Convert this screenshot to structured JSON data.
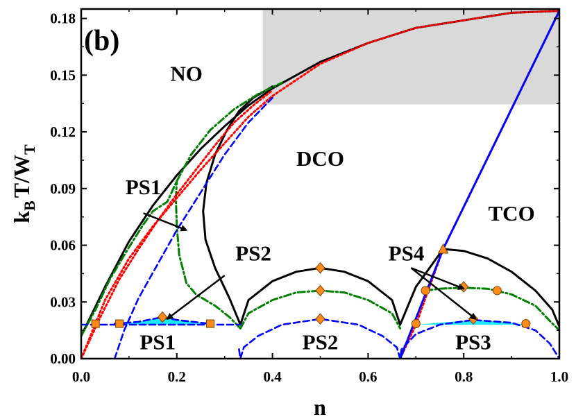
{
  "chart_data": {
    "type": "line",
    "panel_label": "(b)",
    "xlabel": "n",
    "ylabel_main": "k",
    "ylabel_sub1": "B",
    "ylabel_mid": "T/W",
    "ylabel_sub2": "T",
    "xlim": [
      0.0,
      1.0
    ],
    "ylim": [
      0.0,
      0.185
    ],
    "xticks": [
      "0.0",
      "0.2",
      "0.4",
      "0.6",
      "0.8",
      "1.0"
    ],
    "yticks": [
      "0.00",
      "0.03",
      "0.06",
      "0.09",
      "0.12",
      "0.15",
      "0.18"
    ],
    "shaded_region": {
      "x": [
        0.38,
        1.0
      ],
      "y": [
        0.1345,
        0.185
      ],
      "color": "#d9d9d9"
    },
    "colors": {
      "black": "#000000",
      "red": "#ff0000",
      "green": "#008000",
      "blue": "#0000ff",
      "marker": "#ff8c1a",
      "fill": "#00e5ff"
    },
    "series": [
      {
        "style": "solid",
        "color": "#000000",
        "points": [
          [
            0,
            0.012
          ],
          [
            0.05,
            0.038
          ],
          [
            0.1,
            0.062
          ],
          [
            0.15,
            0.081
          ],
          [
            0.2,
            0.097
          ],
          [
            0.25,
            0.111
          ],
          [
            0.3,
            0.123
          ],
          [
            0.35,
            0.134
          ],
          [
            0.4,
            0.143
          ],
          [
            0.5,
            0.157
          ],
          [
            0.6,
            0.167
          ],
          [
            0.7,
            0.175
          ],
          [
            0.8,
            0.179
          ],
          [
            0.9,
            0.183
          ],
          [
            1.0,
            0.184
          ]
        ]
      },
      {
        "style": "solid",
        "color": "#000000",
        "points": [
          [
            0.333,
            0.018
          ],
          [
            0.31,
            0.032
          ],
          [
            0.28,
            0.048
          ],
          [
            0.26,
            0.063
          ],
          [
            0.255,
            0.078
          ],
          [
            0.262,
            0.093
          ],
          [
            0.28,
            0.108
          ],
          [
            0.305,
            0.121
          ],
          [
            0.33,
            0.131
          ],
          [
            0.36,
            0.138
          ],
          [
            0.4,
            0.144
          ]
        ]
      },
      {
        "style": "solid",
        "color": "#000000",
        "points": [
          [
            0.333,
            0.018
          ],
          [
            0.35,
            0.031
          ],
          [
            0.4,
            0.041
          ],
          [
            0.45,
            0.046
          ],
          [
            0.5,
            0.048
          ],
          [
            0.55,
            0.046
          ],
          [
            0.6,
            0.041
          ],
          [
            0.65,
            0.031
          ],
          [
            0.667,
            0.018
          ]
        ]
      },
      {
        "style": "solid",
        "color": "#000000",
        "points": [
          [
            0.667,
            0.018
          ],
          [
            0.7,
            0.038
          ],
          [
            0.757,
            0.058
          ],
          [
            0.8,
            0.057
          ],
          [
            0.85,
            0.053
          ],
          [
            0.9,
            0.046
          ],
          [
            0.95,
            0.036
          ],
          [
            0.985,
            0.026
          ],
          [
            1.0,
            0.017
          ]
        ]
      },
      {
        "style": "dashdot",
        "color": "#008000",
        "points": [
          [
            0,
            0.012
          ],
          [
            0.03,
            0.026
          ],
          [
            0.06,
            0.042
          ],
          [
            0.1,
            0.059
          ],
          [
            0.13,
            0.071
          ],
          [
            0.15,
            0.078
          ],
          [
            0.18,
            0.083
          ],
          [
            0.2,
            0.094
          ],
          [
            0.23,
            0.108
          ],
          [
            0.27,
            0.121
          ],
          [
            0.32,
            0.132
          ],
          [
            0.37,
            0.14
          ],
          [
            0.42,
            0.146
          ]
        ]
      },
      {
        "style": "dashdot",
        "color": "#008000",
        "points": [
          [
            0.333,
            0.016
          ],
          [
            0.31,
            0.022
          ],
          [
            0.28,
            0.028
          ],
          [
            0.24,
            0.034
          ],
          [
            0.22,
            0.04
          ],
          [
            0.205,
            0.055
          ],
          [
            0.2,
            0.07
          ],
          [
            0.198,
            0.085
          ],
          [
            0.2,
            0.094
          ]
        ]
      },
      {
        "style": "dashdot",
        "color": "#008000",
        "points": [
          [
            0.333,
            0.016
          ],
          [
            0.35,
            0.024
          ],
          [
            0.4,
            0.031
          ],
          [
            0.45,
            0.035
          ],
          [
            0.5,
            0.036
          ],
          [
            0.55,
            0.035
          ],
          [
            0.6,
            0.031
          ],
          [
            0.65,
            0.024
          ],
          [
            0.667,
            0.016
          ]
        ]
      },
      {
        "style": "dashdot",
        "color": "#008000",
        "points": [
          [
            0.72,
            0.036
          ],
          [
            0.75,
            0.037
          ],
          [
            0.8,
            0.0375
          ],
          [
            0.85,
            0.037
          ],
          [
            0.9,
            0.034
          ],
          [
            0.95,
            0.028
          ],
          [
            0.98,
            0.02
          ],
          [
            1.0,
            0.015
          ]
        ]
      },
      {
        "style": "dotted",
        "color": "#ff0000",
        "points": [
          [
            0,
            0.0
          ],
          [
            0.04,
            0.022
          ],
          [
            0.08,
            0.042
          ],
          [
            0.12,
            0.058
          ],
          [
            0.16,
            0.073
          ],
          [
            0.2,
            0.087
          ],
          [
            0.24,
            0.1
          ],
          [
            0.28,
            0.113
          ],
          [
            0.32,
            0.125
          ],
          [
            0.36,
            0.134
          ],
          [
            0.4,
            0.142
          ]
        ]
      },
      {
        "style": "dotted",
        "color": "#ff0000",
        "points": [
          [
            0,
            0.0
          ],
          [
            0.05,
            0.031
          ],
          [
            0.1,
            0.053
          ],
          [
            0.15,
            0.07
          ],
          [
            0.2,
            0.085
          ],
          [
            0.25,
            0.1
          ],
          [
            0.3,
            0.114
          ],
          [
            0.35,
            0.128
          ],
          [
            0.4,
            0.139
          ],
          [
            0.5,
            0.156
          ],
          [
            0.6,
            0.167
          ],
          [
            0.7,
            0.175
          ],
          [
            0.8,
            0.179
          ],
          [
            0.9,
            0.183
          ],
          [
            1.0,
            0.184
          ]
        ]
      },
      {
        "style": "dotted",
        "color": "#ff0000",
        "points": [
          [
            0.667,
            0.0
          ],
          [
            0.7,
            0.018
          ],
          [
            0.757,
            0.058
          ],
          [
            1.0,
            0.184
          ]
        ]
      },
      {
        "style": "dashed",
        "color": "#0000ff",
        "points": [
          [
            0.07,
            0.0
          ],
          [
            0.09,
            0.015
          ],
          [
            0.12,
            0.032
          ],
          [
            0.16,
            0.05
          ],
          [
            0.2,
            0.068
          ],
          [
            0.25,
            0.088
          ],
          [
            0.3,
            0.108
          ],
          [
            0.35,
            0.125
          ],
          [
            0.4,
            0.138
          ]
        ]
      },
      {
        "style": "dashed",
        "color": "#0000ff",
        "points": [
          [
            0.0,
            0.018
          ],
          [
            0.333,
            0.018
          ]
        ]
      },
      {
        "style": "dashed",
        "color": "#0000ff",
        "points": [
          [
            0.33,
            0.005
          ],
          [
            0.333,
            0.0
          ],
          [
            0.34,
            0.006
          ],
          [
            0.37,
            0.012
          ],
          [
            0.42,
            0.018
          ],
          [
            0.5,
            0.021
          ],
          [
            0.58,
            0.018
          ],
          [
            0.63,
            0.012
          ],
          [
            0.66,
            0.006
          ],
          [
            0.667,
            0.0
          ],
          [
            0.67,
            0.005
          ],
          [
            0.7,
            0.013
          ],
          [
            0.75,
            0.018
          ],
          [
            0.82,
            0.0205
          ],
          [
            0.9,
            0.019
          ],
          [
            0.95,
            0.015
          ],
          [
            0.98,
            0.008
          ],
          [
            1.0,
            0.0
          ]
        ]
      },
      {
        "style": "dashed",
        "color": "#0000ff",
        "points": [
          [
            0.07,
            0.0185
          ],
          [
            0.12,
            0.0195
          ],
          [
            0.17,
            0.022
          ],
          [
            0.2,
            0.0205
          ],
          [
            0.25,
            0.019
          ],
          [
            0.27,
            0.0185
          ]
        ]
      },
      {
        "style": "solid",
        "color": "#0000ff",
        "points": [
          [
            0.667,
            0.0
          ],
          [
            0.757,
            0.058
          ],
          [
            1.0,
            0.184
          ]
        ]
      }
    ],
    "markers": [
      {
        "shape": "square",
        "x": 0.03,
        "y": 0.0185
      },
      {
        "shape": "square",
        "x": 0.08,
        "y": 0.0185
      },
      {
        "shape": "square",
        "x": 0.27,
        "y": 0.0185
      },
      {
        "shape": "diamond",
        "x": 0.17,
        "y": 0.022
      },
      {
        "shape": "diamond",
        "x": 0.5,
        "y": 0.048
      },
      {
        "shape": "diamond",
        "x": 0.5,
        "y": 0.036
      },
      {
        "shape": "diamond",
        "x": 0.5,
        "y": 0.021
      },
      {
        "shape": "triangle",
        "x": 0.757,
        "y": 0.058
      },
      {
        "shape": "circle",
        "x": 0.72,
        "y": 0.036
      },
      {
        "shape": "diamond",
        "x": 0.8,
        "y": 0.038
      },
      {
        "shape": "circle",
        "x": 0.87,
        "y": 0.036
      },
      {
        "shape": "circle",
        "x": 0.7,
        "y": 0.0185
      },
      {
        "shape": "diamond",
        "x": 0.82,
        "y": 0.021
      },
      {
        "shape": "circle",
        "x": 0.93,
        "y": 0.0185
      }
    ],
    "region_labels": [
      {
        "text": "NO",
        "x": 0.22,
        "y": 0.147
      },
      {
        "text": "DCO",
        "x": 0.5,
        "y": 0.102
      },
      {
        "text": "TCO",
        "x": 0.9,
        "y": 0.073
      },
      {
        "text": "PS1",
        "x": 0.13,
        "y": 0.087
      },
      {
        "text": "PS2",
        "x": 0.36,
        "y": 0.052
      },
      {
        "text": "PS4",
        "x": 0.68,
        "y": 0.052
      },
      {
        "text": "PS1",
        "x": 0.16,
        "y": 0.005
      },
      {
        "text": "PS2",
        "x": 0.5,
        "y": 0.005
      },
      {
        "text": "PS3",
        "x": 0.82,
        "y": 0.005
      }
    ],
    "arrows": [
      {
        "from": [
          0.13,
          0.077
        ],
        "to": [
          0.22,
          0.068
        ]
      },
      {
        "from": [
          0.3,
          0.044
        ],
        "to": [
          0.18,
          0.021
        ]
      },
      {
        "from": [
          0.69,
          0.048
        ],
        "to": [
          0.8,
          0.037
        ]
      },
      {
        "from": [
          0.69,
          0.048
        ],
        "to": [
          0.825,
          0.021
        ]
      }
    ]
  }
}
